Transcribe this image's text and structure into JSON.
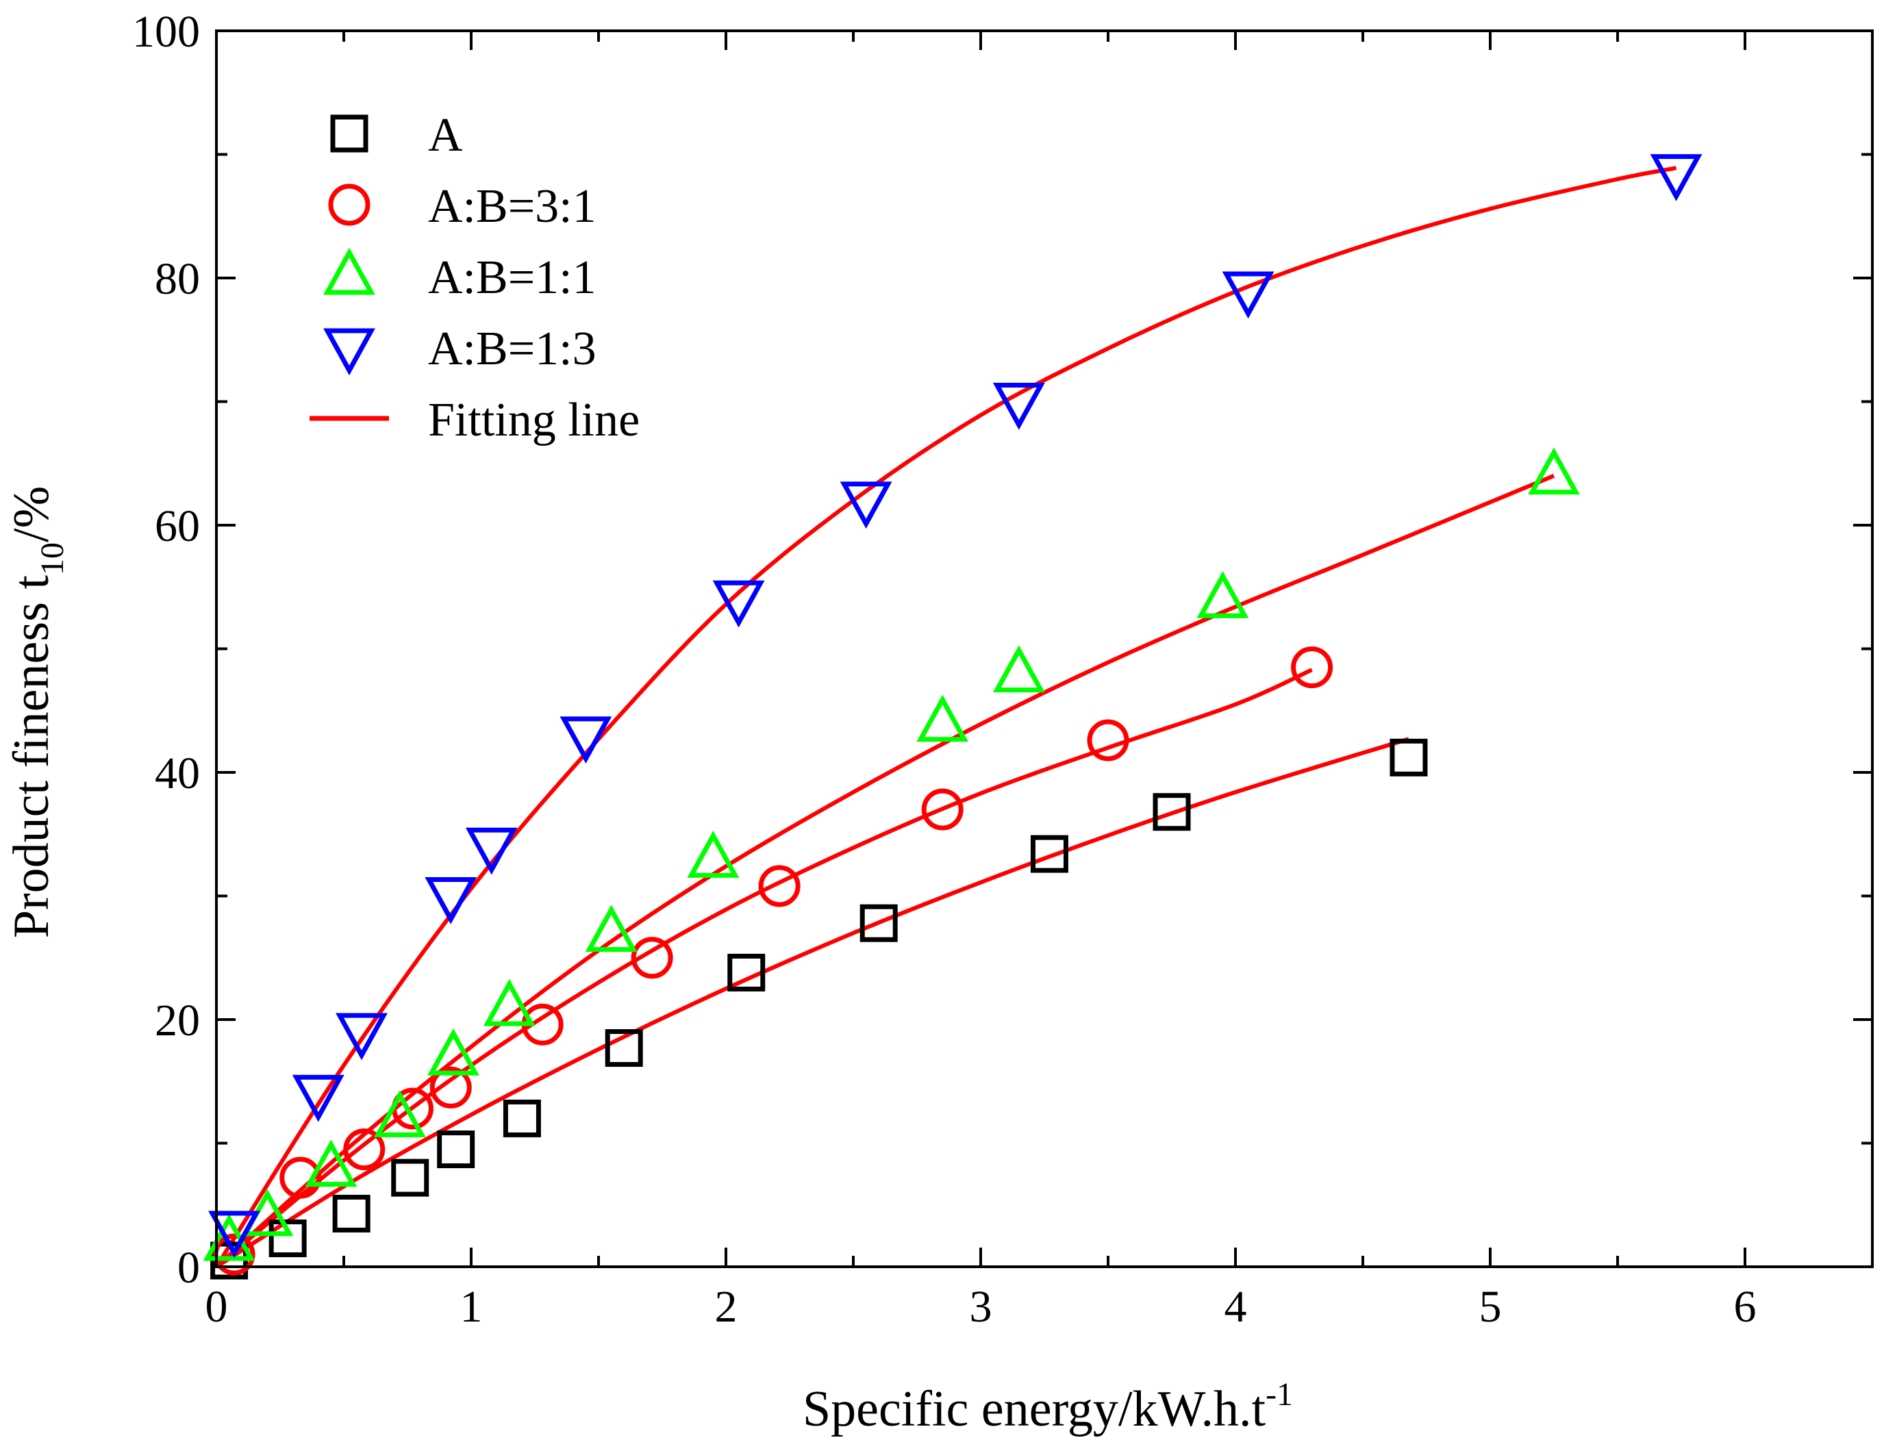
{
  "chart_data": {
    "type": "scatter",
    "title": "",
    "xlabel": "Specific energy/kW.h.t",
    "xlabel_sup": "-1",
    "ylabel_main": "Product fineness t",
    "ylabel_sub": "10",
    "ylabel_unit": "/%",
    "xlim": [
      0,
      6.5
    ],
    "ylim": [
      0,
      100
    ],
    "xticks": [
      0,
      1,
      2,
      3,
      4,
      5,
      6
    ],
    "yticks": [
      0,
      20,
      40,
      60,
      80,
      100
    ],
    "xtick_labels": [
      "0",
      "1",
      "2",
      "3",
      "4",
      "5",
      "6"
    ],
    "ytick_labels": [
      "0",
      "20",
      "40",
      "60",
      "80",
      "100"
    ],
    "legend_position": "top-left",
    "series": [
      {
        "name": "A",
        "marker": "square",
        "color": "#000000",
        "points": [
          [
            0.05,
            0.5
          ],
          [
            0.28,
            2.3
          ],
          [
            0.53,
            4.3
          ],
          [
            0.76,
            7.2
          ],
          [
            0.94,
            9.5
          ],
          [
            1.2,
            12.0
          ],
          [
            1.6,
            17.7
          ],
          [
            2.08,
            23.8
          ],
          [
            2.6,
            27.8
          ],
          [
            3.27,
            33.4
          ],
          [
            3.75,
            36.8
          ],
          [
            4.68,
            41.2
          ]
        ]
      },
      {
        "name": "A:B=3:1",
        "marker": "circle",
        "color": "#ff0000",
        "points": [
          [
            0.07,
            1.0
          ],
          [
            0.33,
            7.2
          ],
          [
            0.58,
            9.5
          ],
          [
            0.77,
            12.8
          ],
          [
            0.92,
            14.5
          ],
          [
            1.28,
            19.6
          ],
          [
            1.71,
            25.0
          ],
          [
            2.21,
            30.8
          ],
          [
            2.85,
            37.0
          ],
          [
            3.5,
            42.6
          ],
          [
            4.3,
            48.5
          ]
        ]
      },
      {
        "name": "A:B=1:1",
        "marker": "triangle-up",
        "color": "#00ff00",
        "points": [
          [
            0.05,
            2.0
          ],
          [
            0.2,
            4.0
          ],
          [
            0.45,
            8.0
          ],
          [
            0.72,
            12.0
          ],
          [
            0.93,
            17.0
          ],
          [
            1.15,
            21.0
          ],
          [
            1.55,
            27.0
          ],
          [
            1.95,
            33.0
          ],
          [
            2.85,
            44.0
          ],
          [
            3.15,
            48.0
          ],
          [
            3.95,
            54.0
          ],
          [
            5.25,
            64.0
          ]
        ]
      },
      {
        "name": "A:B=1:3",
        "marker": "triangle-down",
        "color": "#0000ff",
        "points": [
          [
            0.07,
            3.0
          ],
          [
            0.4,
            14.0
          ],
          [
            0.57,
            19.0
          ],
          [
            0.92,
            30.0
          ],
          [
            1.08,
            34.0
          ],
          [
            1.45,
            43.0
          ],
          [
            2.05,
            54.0
          ],
          [
            2.55,
            62.0
          ],
          [
            3.15,
            70.0
          ],
          [
            4.05,
            79.0
          ],
          [
            5.73,
            88.5
          ]
        ]
      }
    ],
    "fit_lines": [
      {
        "name": "Fitting line",
        "color": "#ff0000",
        "for": "A",
        "points": [
          [
            0.0,
            0.0
          ],
          [
            0.5,
            6.5
          ],
          [
            1.0,
            12.3
          ],
          [
            1.5,
            17.6
          ],
          [
            2.0,
            22.5
          ],
          [
            2.5,
            27.0
          ],
          [
            3.0,
            31.1
          ],
          [
            3.5,
            34.9
          ],
          [
            4.0,
            38.4
          ],
          [
            4.68,
            42.7
          ]
        ]
      },
      {
        "name": "Fitting line",
        "color": "#ff0000",
        "for": "A:B=3:1",
        "points": [
          [
            0.0,
            0.0
          ],
          [
            0.5,
            8.6
          ],
          [
            1.0,
            16.3
          ],
          [
            1.5,
            23.0
          ],
          [
            2.0,
            28.9
          ],
          [
            2.5,
            33.9
          ],
          [
            3.0,
            38.3
          ],
          [
            3.5,
            42.0
          ],
          [
            4.0,
            45.5
          ],
          [
            4.3,
            48.3
          ]
        ]
      },
      {
        "name": "Fitting line",
        "color": "#ff0000",
        "for": "A:B=1:1",
        "points": [
          [
            0.0,
            0.0
          ],
          [
            0.5,
            9.3
          ],
          [
            1.0,
            17.8
          ],
          [
            1.5,
            25.6
          ],
          [
            2.0,
            32.4
          ],
          [
            2.5,
            38.4
          ],
          [
            3.0,
            43.9
          ],
          [
            3.5,
            48.9
          ],
          [
            4.0,
            53.4
          ],
          [
            4.5,
            57.6
          ],
          [
            5.25,
            64.0
          ]
        ]
      },
      {
        "name": "Fitting line",
        "color": "#ff0000",
        "for": "A:B=1:3",
        "points": [
          [
            0.0,
            0.0
          ],
          [
            0.5,
            16.3
          ],
          [
            1.0,
            30.6
          ],
          [
            1.5,
            42.7
          ],
          [
            2.0,
            53.6
          ],
          [
            2.5,
            62.0
          ],
          [
            3.0,
            68.9
          ],
          [
            3.5,
            74.3
          ],
          [
            4.0,
            78.9
          ],
          [
            4.5,
            82.6
          ],
          [
            5.0,
            85.6
          ],
          [
            5.5,
            88.0
          ],
          [
            5.73,
            88.9
          ]
        ]
      }
    ],
    "legend": [
      {
        "label": "A",
        "marker": "square",
        "color": "#000000"
      },
      {
        "label": "A:B=3:1",
        "marker": "circle",
        "color": "#ff0000"
      },
      {
        "label": "A:B=1:1",
        "marker": "triangle-up",
        "color": "#00ff00"
      },
      {
        "label": "A:B=1:3",
        "marker": "triangle-down",
        "color": "#0000ff"
      },
      {
        "label": "Fitting line",
        "marker": "line",
        "color": "#ff0000"
      }
    ]
  }
}
